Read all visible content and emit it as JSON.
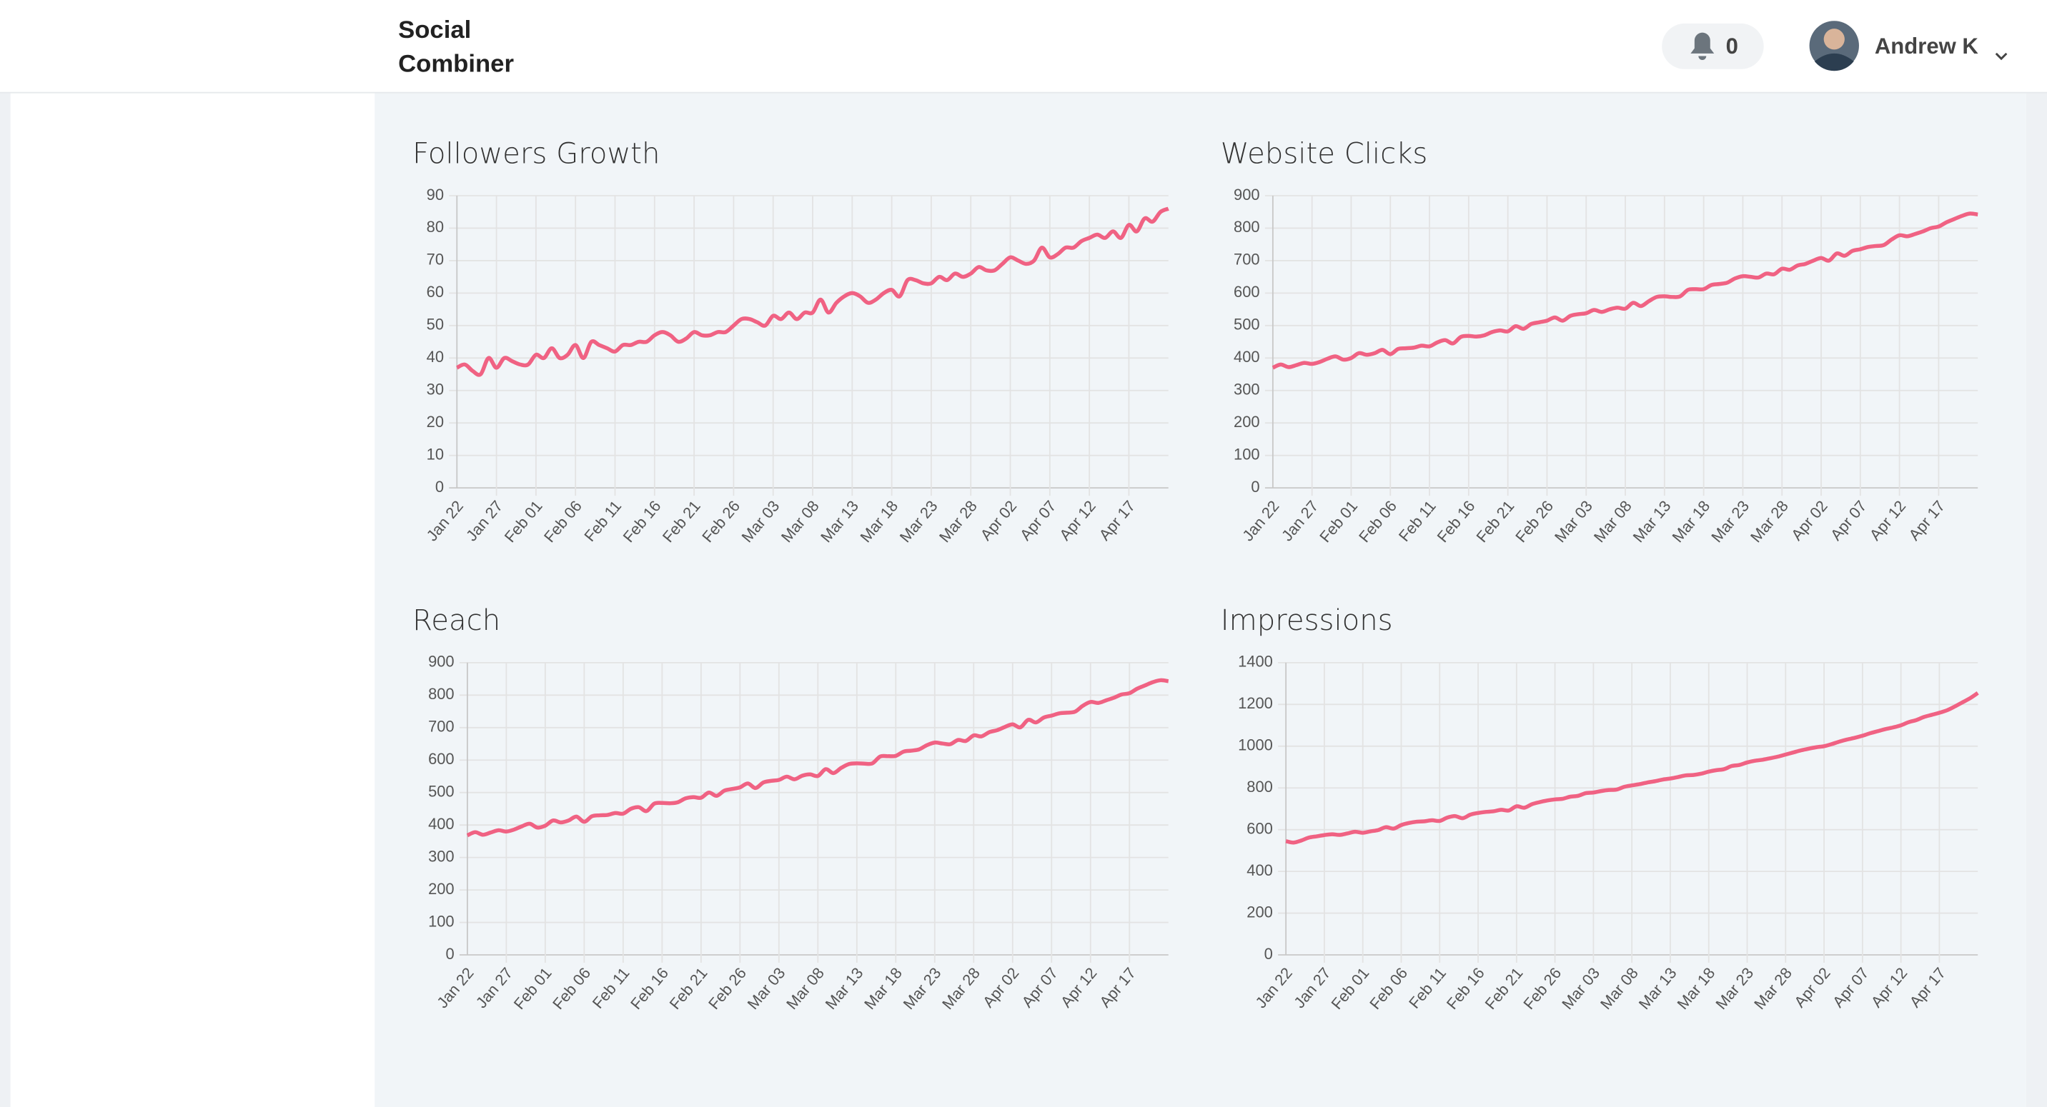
{
  "header": {
    "brand_line1": "Social",
    "brand_line2": "Combiner",
    "notifications": 0,
    "user_name": "Andrew K"
  },
  "chart_data": [
    {
      "type": "line",
      "title": "Followers Growth",
      "color": "#f06283",
      "grid": true,
      "categories": [
        "Jan 22",
        null,
        null,
        null,
        null,
        "Jan 27",
        null,
        null,
        null,
        null,
        "Feb 01",
        null,
        null,
        null,
        null,
        "Feb 06",
        null,
        null,
        null,
        null,
        "Feb 11",
        null,
        null,
        null,
        null,
        "Feb 16",
        null,
        null,
        null,
        null,
        "Feb 21",
        null,
        null,
        null,
        null,
        "Feb 26",
        null,
        null,
        null,
        null,
        "Mar 03",
        null,
        null,
        null,
        null,
        "Mar 08",
        null,
        null,
        null,
        null,
        "Mar 13",
        null,
        null,
        null,
        null,
        "Mar 18",
        null,
        null,
        null,
        null,
        "Mar 23",
        null,
        null,
        null,
        null,
        "Mar 28",
        null,
        null,
        null,
        null,
        "Apr 02",
        null,
        null,
        null,
        null,
        "Apr 07",
        null,
        null,
        null,
        null,
        "Apr 12",
        null,
        null,
        null,
        null,
        "Apr 17",
        null,
        null,
        null,
        null,
        null
      ],
      "values": [
        37,
        38,
        36,
        35,
        40,
        37,
        40,
        39,
        38,
        38,
        41,
        40,
        43,
        40,
        41,
        44,
        40,
        45,
        44,
        43,
        42,
        44,
        44,
        45,
        45,
        47,
        48,
        47,
        45,
        46,
        48,
        47,
        47,
        48,
        48,
        50,
        52,
        52,
        51,
        50,
        53,
        52,
        54,
        52,
        54,
        54,
        58,
        54,
        57,
        59,
        60,
        59,
        57,
        58,
        60,
        61,
        59,
        64,
        64,
        63,
        63,
        65,
        64,
        66,
        65,
        66,
        68,
        67,
        67,
        69,
        71,
        70,
        69,
        70,
        74,
        71,
        72,
        74,
        74,
        76,
        77,
        78,
        77,
        79,
        77,
        81,
        79,
        83,
        82,
        85,
        86
      ],
      "ylim": [
        0,
        90
      ],
      "yticks": [
        0,
        10,
        20,
        30,
        40,
        50,
        60,
        70,
        80,
        90
      ]
    },
    {
      "type": "line",
      "title": "Website Clicks",
      "color": "#f06283",
      "grid": true,
      "categories": [
        "Jan 22",
        null,
        null,
        null,
        null,
        "Jan 27",
        null,
        null,
        null,
        null,
        "Feb 01",
        null,
        null,
        null,
        null,
        "Feb 06",
        null,
        null,
        null,
        null,
        "Feb 11",
        null,
        null,
        null,
        null,
        "Feb 16",
        null,
        null,
        null,
        null,
        "Feb 21",
        null,
        null,
        null,
        null,
        "Feb 26",
        null,
        null,
        null,
        null,
        "Mar 03",
        null,
        null,
        null,
        null,
        "Mar 08",
        null,
        null,
        null,
        null,
        "Mar 13",
        null,
        null,
        null,
        null,
        "Mar 18",
        null,
        null,
        null,
        null,
        "Mar 23",
        null,
        null,
        null,
        null,
        "Mar 28",
        null,
        null,
        null,
        null,
        "Apr 02",
        null,
        null,
        null,
        null,
        "Apr 07",
        null,
        null,
        null,
        null,
        "Apr 12",
        null,
        null,
        null,
        null,
        "Apr 17",
        null,
        null,
        null,
        null,
        null
      ],
      "values": [
        370,
        380,
        372,
        378,
        385,
        382,
        388,
        398,
        405,
        395,
        400,
        415,
        410,
        415,
        425,
        412,
        428,
        430,
        432,
        438,
        436,
        448,
        455,
        445,
        465,
        468,
        466,
        470,
        480,
        485,
        482,
        498,
        490,
        505,
        510,
        515,
        525,
        515,
        530,
        535,
        538,
        548,
        542,
        550,
        555,
        552,
        570,
        560,
        575,
        588,
        590,
        588,
        590,
        610,
        612,
        612,
        625,
        628,
        632,
        645,
        652,
        650,
        648,
        660,
        658,
        675,
        672,
        685,
        690,
        700,
        708,
        700,
        722,
        715,
        730,
        735,
        742,
        745,
        748,
        765,
        778,
        775,
        782,
        790,
        800,
        805,
        818,
        828,
        838,
        845,
        842
      ],
      "ylim": [
        0,
        900
      ],
      "yticks": [
        0,
        100,
        200,
        300,
        400,
        500,
        600,
        700,
        800,
        900
      ]
    },
    {
      "type": "line",
      "title": "Reach",
      "color": "#f06283",
      "grid": true,
      "categories": [
        "Jan 22",
        null,
        null,
        null,
        null,
        "Jan 27",
        null,
        null,
        null,
        null,
        "Feb 01",
        null,
        null,
        null,
        null,
        "Feb 06",
        null,
        null,
        null,
        null,
        "Feb 11",
        null,
        null,
        null,
        null,
        "Feb 16",
        null,
        null,
        null,
        null,
        "Feb 21",
        null,
        null,
        null,
        null,
        "Feb 26",
        null,
        null,
        null,
        null,
        "Mar 03",
        null,
        null,
        null,
        null,
        "Mar 08",
        null,
        null,
        null,
        null,
        "Mar 13",
        null,
        null,
        null,
        null,
        "Mar 18",
        null,
        null,
        null,
        null,
        "Mar 23",
        null,
        null,
        null,
        null,
        "Mar 28",
        null,
        null,
        null,
        null,
        "Apr 02",
        null,
        null,
        null,
        null,
        "Apr 07",
        null,
        null,
        null,
        null,
        "Apr 12",
        null,
        null,
        null,
        null,
        "Apr 17",
        null,
        null,
        null,
        null,
        null
      ],
      "values": [
        368,
        378,
        370,
        377,
        384,
        380,
        386,
        396,
        404,
        392,
        398,
        414,
        408,
        414,
        426,
        410,
        427,
        430,
        431,
        437,
        435,
        450,
        455,
        443,
        466,
        468,
        467,
        470,
        482,
        486,
        484,
        500,
        490,
        506,
        511,
        516,
        528,
        514,
        531,
        536,
        539,
        549,
        541,
        552,
        556,
        551,
        572,
        560,
        576,
        588,
        590,
        589,
        590,
        611,
        612,
        613,
        626,
        629,
        633,
        646,
        654,
        651,
        649,
        662,
        659,
        676,
        673,
        686,
        692,
        702,
        710,
        701,
        724,
        716,
        731,
        737,
        744,
        746,
        749,
        767,
        779,
        776,
        784,
        792,
        802,
        806,
        820,
        830,
        840,
        846,
        843
      ],
      "ylim": [
        0,
        900
      ],
      "yticks": [
        0,
        100,
        200,
        300,
        400,
        500,
        600,
        700,
        800,
        900
      ]
    },
    {
      "type": "line",
      "title": "Impressions",
      "color": "#f06283",
      "grid": true,
      "categories": [
        "Jan 22",
        null,
        null,
        null,
        null,
        "Jan 27",
        null,
        null,
        null,
        null,
        "Feb 01",
        null,
        null,
        null,
        null,
        "Feb 06",
        null,
        null,
        null,
        null,
        "Feb 11",
        null,
        null,
        null,
        null,
        "Feb 16",
        null,
        null,
        null,
        null,
        "Feb 21",
        null,
        null,
        null,
        null,
        "Feb 26",
        null,
        null,
        null,
        null,
        "Mar 03",
        null,
        null,
        null,
        null,
        "Mar 08",
        null,
        null,
        null,
        null,
        "Mar 13",
        null,
        null,
        null,
        null,
        "Mar 18",
        null,
        null,
        null,
        null,
        "Mar 23",
        null,
        null,
        null,
        null,
        "Mar 28",
        null,
        null,
        null,
        null,
        "Apr 02",
        null,
        null,
        null,
        null,
        "Apr 07",
        null,
        null,
        null,
        null,
        "Apr 12",
        null,
        null,
        null,
        null,
        "Apr 17",
        null,
        null,
        null,
        null,
        null
      ],
      "values": [
        545,
        538,
        548,
        562,
        568,
        574,
        578,
        575,
        582,
        590,
        585,
        592,
        598,
        612,
        605,
        622,
        632,
        638,
        640,
        645,
        642,
        658,
        665,
        655,
        672,
        680,
        685,
        688,
        695,
        692,
        712,
        705,
        722,
        732,
        740,
        745,
        748,
        758,
        762,
        775,
        778,
        785,
        790,
        792,
        805,
        812,
        818,
        826,
        832,
        840,
        845,
        852,
        860,
        862,
        868,
        878,
        885,
        890,
        905,
        910,
        922,
        930,
        935,
        942,
        950,
        960,
        970,
        980,
        988,
        995,
        1000,
        1010,
        1022,
        1032,
        1040,
        1050,
        1062,
        1072,
        1082,
        1090,
        1100,
        1115,
        1125,
        1140,
        1150,
        1160,
        1172,
        1190,
        1210,
        1230,
        1255
      ],
      "ylim": [
        0,
        1400
      ],
      "yticks": [
        0,
        200,
        400,
        600,
        800,
        1000,
        1200,
        1400
      ]
    }
  ]
}
